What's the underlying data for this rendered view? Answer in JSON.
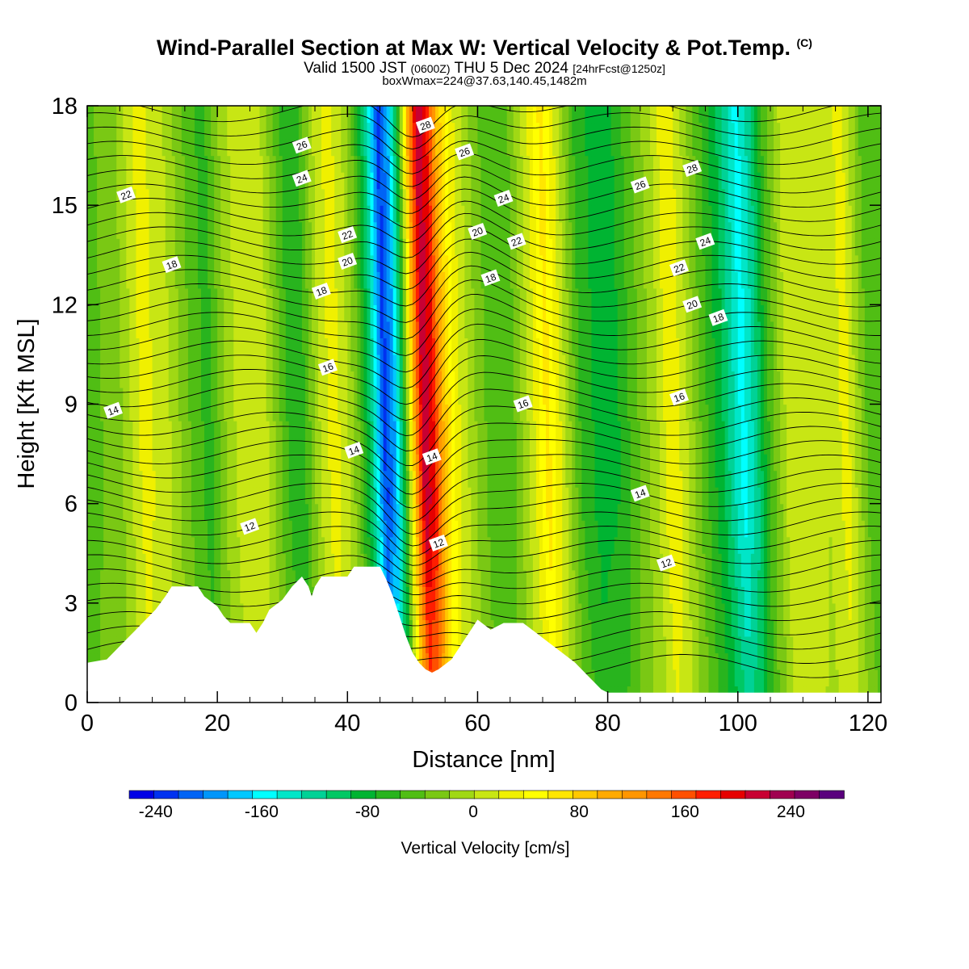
{
  "title": {
    "main": "Wind-Parallel Section at Max W: Vertical Velocity & Pot.Temp.",
    "mark": "(C)"
  },
  "subtitle": {
    "valid_prefix": "Valid 1500 JST",
    "zulu": "(0600Z)",
    "valid_date": "THU 5 Dec 2024",
    "forecast": "[24hrFcst@1250z]"
  },
  "box_info": "boxWmax=224@37.63,140.45,1482m",
  "chart_data": {
    "type": "heatmap",
    "xlabel": "Distance [nm]",
    "ylabel": "Height [Kft MSL]",
    "xlim": [
      0,
      122
    ],
    "ylim": [
      0,
      18
    ],
    "x_ticks": [
      0,
      20,
      40,
      60,
      80,
      100,
      120
    ],
    "y_ticks": [
      0,
      3,
      6,
      9,
      12,
      15,
      18
    ],
    "colorbar": {
      "label": "Vertical Velocity [cm/s]",
      "range": [
        -260,
        280
      ],
      "step": 20,
      "tick_values": [
        -240,
        -160,
        -80,
        0,
        80,
        160,
        240
      ],
      "colors": [
        "#0000e6",
        "#0032f0",
        "#0064f5",
        "#0096fa",
        "#00c8ff",
        "#00ffff",
        "#00e6c8",
        "#00d296",
        "#00c864",
        "#00b432",
        "#28b41e",
        "#50be14",
        "#7ac814",
        "#a0d814",
        "#c8e614",
        "#f0f000",
        "#ffff00",
        "#ffe600",
        "#ffc800",
        "#ffaa00",
        "#ff9600",
        "#ff7800",
        "#ff5000",
        "#ff1e00",
        "#e60000",
        "#c80032",
        "#a00050",
        "#7d0064",
        "#5a007d"
      ]
    },
    "vertical_velocity_columns": [
      {
        "x": 0,
        "w": -30
      },
      {
        "x": 5,
        "w": -10
      },
      {
        "x": 9,
        "w": 50
      },
      {
        "x": 13,
        "w": 20
      },
      {
        "x": 16,
        "w": -20
      },
      {
        "x": 19,
        "w": -50
      },
      {
        "x": 22,
        "w": 10
      },
      {
        "x": 25,
        "w": 40
      },
      {
        "x": 28,
        "w": 20
      },
      {
        "x": 31,
        "w": -40
      },
      {
        "x": 33,
        "w": -60
      },
      {
        "x": 36,
        "w": 20
      },
      {
        "x": 38,
        "w": 50
      },
      {
        "x": 40,
        "w": 30
      },
      {
        "x": 42,
        "w": -20
      },
      {
        "x": 44,
        "w": -100
      },
      {
        "x": 46,
        "w": -230
      },
      {
        "x": 47.5,
        "w": -180
      },
      {
        "x": 49,
        "w": -60
      },
      {
        "x": 50.5,
        "w": 120
      },
      {
        "x": 52,
        "w": 260
      },
      {
        "x": 53.5,
        "w": 220
      },
      {
        "x": 55,
        "w": 120
      },
      {
        "x": 57,
        "w": 50
      },
      {
        "x": 60,
        "w": 0
      },
      {
        "x": 63,
        "w": -40
      },
      {
        "x": 66,
        "w": -20
      },
      {
        "x": 69,
        "w": 40
      },
      {
        "x": 71,
        "w": 90
      },
      {
        "x": 73,
        "w": 40
      },
      {
        "x": 76,
        "w": -40
      },
      {
        "x": 79,
        "w": -70
      },
      {
        "x": 82,
        "w": -60
      },
      {
        "x": 85,
        "w": -20
      },
      {
        "x": 88,
        "w": 20
      },
      {
        "x": 90,
        "w": 60
      },
      {
        "x": 92,
        "w": 30
      },
      {
        "x": 95,
        "w": -30
      },
      {
        "x": 98,
        "w": -80
      },
      {
        "x": 101,
        "w": -150
      },
      {
        "x": 103,
        "w": -110
      },
      {
        "x": 105,
        "w": -40
      },
      {
        "x": 108,
        "w": 30
      },
      {
        "x": 111,
        "w": 40
      },
      {
        "x": 114,
        "w": 20
      },
      {
        "x": 117,
        "w": 50
      },
      {
        "x": 120,
        "w": -20
      },
      {
        "x": 122,
        "w": -40
      }
    ],
    "terrain": [
      [
        0,
        1.2
      ],
      [
        3,
        1.3
      ],
      [
        4.5,
        1.6
      ],
      [
        6,
        1.9
      ],
      [
        7.5,
        2.2
      ],
      [
        9,
        2.5
      ],
      [
        10.5,
        2.8
      ],
      [
        12,
        3.2
      ],
      [
        13,
        3.5
      ],
      [
        17,
        3.5
      ],
      [
        18,
        3.2
      ],
      [
        20,
        2.9
      ],
      [
        21,
        2.6
      ],
      [
        22,
        2.4
      ],
      [
        25,
        2.4
      ],
      [
        26,
        2.1
      ],
      [
        27,
        2.4
      ],
      [
        28,
        2.8
      ],
      [
        30,
        3.1
      ],
      [
        31.5,
        3.5
      ],
      [
        33,
        3.8
      ],
      [
        34,
        3.5
      ],
      [
        34.5,
        3.2
      ],
      [
        35,
        3.5
      ],
      [
        36,
        3.8
      ],
      [
        40,
        3.8
      ],
      [
        41,
        4.1
      ],
      [
        45,
        4.1
      ],
      [
        46,
        3.7
      ],
      [
        47,
        3.2
      ],
      [
        48,
        2.6
      ],
      [
        49,
        2.0
      ],
      [
        50,
        1.5
      ],
      [
        51,
        1.2
      ],
      [
        52,
        1.0
      ],
      [
        53,
        0.9
      ],
      [
        54,
        1.0
      ],
      [
        56,
        1.3
      ],
      [
        57,
        1.6
      ],
      [
        58,
        1.9
      ],
      [
        59,
        2.2
      ],
      [
        60,
        2.5
      ],
      [
        62,
        2.2
      ],
      [
        64,
        2.4
      ],
      [
        67,
        2.4
      ],
      [
        69,
        2.1
      ],
      [
        71,
        1.8
      ],
      [
        73,
        1.5
      ],
      [
        75,
        1.2
      ],
      [
        77,
        0.8
      ],
      [
        79,
        0.4
      ],
      [
        80,
        0.3
      ],
      [
        122,
        0.3
      ]
    ],
    "theta_contour_levels": [
      12,
      14,
      16,
      18,
      20,
      22,
      24,
      26,
      28
    ],
    "theta_labels": [
      {
        "text": "22",
        "x": 6,
        "y": 15.3
      },
      {
        "text": "18",
        "x": 13,
        "y": 13.2
      },
      {
        "text": "14",
        "x": 4,
        "y": 8.8
      },
      {
        "text": "12",
        "x": 25,
        "y": 5.3
      },
      {
        "text": "26",
        "x": 33,
        "y": 16.8
      },
      {
        "text": "24",
        "x": 33,
        "y": 15.8
      },
      {
        "text": "22",
        "x": 40,
        "y": 14.1
      },
      {
        "text": "20",
        "x": 40,
        "y": 13.3
      },
      {
        "text": "18",
        "x": 36,
        "y": 12.4
      },
      {
        "text": "16",
        "x": 37,
        "y": 10.1
      },
      {
        "text": "14",
        "x": 41,
        "y": 7.6
      },
      {
        "text": "28",
        "x": 52,
        "y": 17.4
      },
      {
        "text": "14",
        "x": 53,
        "y": 7.4
      },
      {
        "text": "12",
        "x": 54,
        "y": 4.8
      },
      {
        "text": "26",
        "x": 58,
        "y": 16.6
      },
      {
        "text": "24",
        "x": 64,
        "y": 15.2
      },
      {
        "text": "20",
        "x": 60,
        "y": 14.2
      },
      {
        "text": "22",
        "x": 66,
        "y": 13.9
      },
      {
        "text": "18",
        "x": 62,
        "y": 12.8
      },
      {
        "text": "16",
        "x": 67,
        "y": 9.0
      },
      {
        "text": "28",
        "x": 93,
        "y": 16.1
      },
      {
        "text": "26",
        "x": 85,
        "y": 15.6
      },
      {
        "text": "24",
        "x": 95,
        "y": 13.9
      },
      {
        "text": "22",
        "x": 91,
        "y": 13.1
      },
      {
        "text": "20",
        "x": 93,
        "y": 12.0
      },
      {
        "text": "18",
        "x": 97,
        "y": 11.6
      },
      {
        "text": "16",
        "x": 91,
        "y": 9.2
      },
      {
        "text": "14",
        "x": 85,
        "y": 6.3
      },
      {
        "text": "12",
        "x": 89,
        "y": 4.2
      }
    ]
  }
}
